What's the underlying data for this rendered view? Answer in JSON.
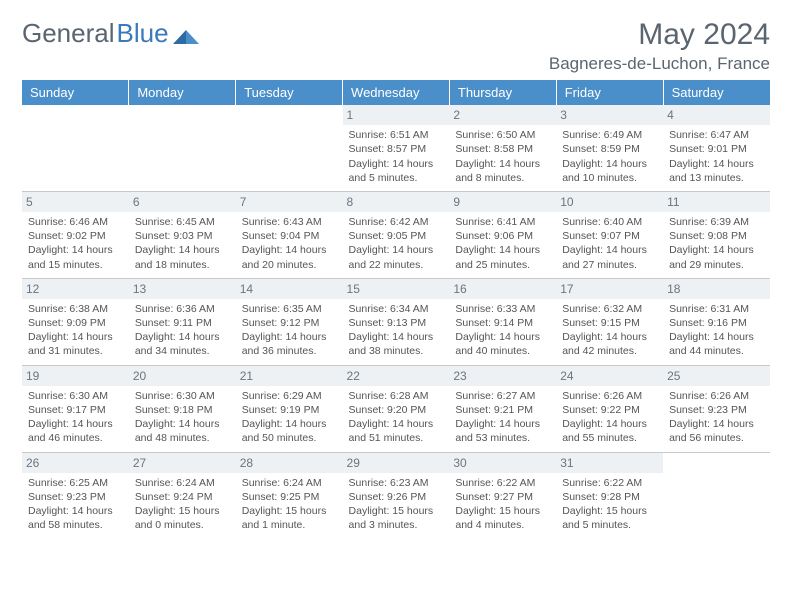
{
  "logo": {
    "text1": "General",
    "text2": "Blue"
  },
  "title": "May 2024",
  "location": "Bagneres-de-Luchon, France",
  "colors": {
    "header_bg": "#4a8fc9",
    "header_text": "#ffffff",
    "daynum_bg": "#eef1f3",
    "daynum_text": "#6a7580",
    "border": "#c8c8c8",
    "body_text": "#555555",
    "title_text": "#5a6570",
    "logo_blue": "#3a7ab8"
  },
  "day_headers": [
    "Sunday",
    "Monday",
    "Tuesday",
    "Wednesday",
    "Thursday",
    "Friday",
    "Saturday"
  ],
  "weeks": [
    [
      {
        "empty": true
      },
      {
        "empty": true
      },
      {
        "empty": true
      },
      {
        "day": "1",
        "sunrise": "Sunrise: 6:51 AM",
        "sunset": "Sunset: 8:57 PM",
        "dl1": "Daylight: 14 hours",
        "dl2": "and 5 minutes."
      },
      {
        "day": "2",
        "sunrise": "Sunrise: 6:50 AM",
        "sunset": "Sunset: 8:58 PM",
        "dl1": "Daylight: 14 hours",
        "dl2": "and 8 minutes."
      },
      {
        "day": "3",
        "sunrise": "Sunrise: 6:49 AM",
        "sunset": "Sunset: 8:59 PM",
        "dl1": "Daylight: 14 hours",
        "dl2": "and 10 minutes."
      },
      {
        "day": "4",
        "sunrise": "Sunrise: 6:47 AM",
        "sunset": "Sunset: 9:01 PM",
        "dl1": "Daylight: 14 hours",
        "dl2": "and 13 minutes."
      }
    ],
    [
      {
        "day": "5",
        "sunrise": "Sunrise: 6:46 AM",
        "sunset": "Sunset: 9:02 PM",
        "dl1": "Daylight: 14 hours",
        "dl2": "and 15 minutes."
      },
      {
        "day": "6",
        "sunrise": "Sunrise: 6:45 AM",
        "sunset": "Sunset: 9:03 PM",
        "dl1": "Daylight: 14 hours",
        "dl2": "and 18 minutes."
      },
      {
        "day": "7",
        "sunrise": "Sunrise: 6:43 AM",
        "sunset": "Sunset: 9:04 PM",
        "dl1": "Daylight: 14 hours",
        "dl2": "and 20 minutes."
      },
      {
        "day": "8",
        "sunrise": "Sunrise: 6:42 AM",
        "sunset": "Sunset: 9:05 PM",
        "dl1": "Daylight: 14 hours",
        "dl2": "and 22 minutes."
      },
      {
        "day": "9",
        "sunrise": "Sunrise: 6:41 AM",
        "sunset": "Sunset: 9:06 PM",
        "dl1": "Daylight: 14 hours",
        "dl2": "and 25 minutes."
      },
      {
        "day": "10",
        "sunrise": "Sunrise: 6:40 AM",
        "sunset": "Sunset: 9:07 PM",
        "dl1": "Daylight: 14 hours",
        "dl2": "and 27 minutes."
      },
      {
        "day": "11",
        "sunrise": "Sunrise: 6:39 AM",
        "sunset": "Sunset: 9:08 PM",
        "dl1": "Daylight: 14 hours",
        "dl2": "and 29 minutes."
      }
    ],
    [
      {
        "day": "12",
        "sunrise": "Sunrise: 6:38 AM",
        "sunset": "Sunset: 9:09 PM",
        "dl1": "Daylight: 14 hours",
        "dl2": "and 31 minutes."
      },
      {
        "day": "13",
        "sunrise": "Sunrise: 6:36 AM",
        "sunset": "Sunset: 9:11 PM",
        "dl1": "Daylight: 14 hours",
        "dl2": "and 34 minutes."
      },
      {
        "day": "14",
        "sunrise": "Sunrise: 6:35 AM",
        "sunset": "Sunset: 9:12 PM",
        "dl1": "Daylight: 14 hours",
        "dl2": "and 36 minutes."
      },
      {
        "day": "15",
        "sunrise": "Sunrise: 6:34 AM",
        "sunset": "Sunset: 9:13 PM",
        "dl1": "Daylight: 14 hours",
        "dl2": "and 38 minutes."
      },
      {
        "day": "16",
        "sunrise": "Sunrise: 6:33 AM",
        "sunset": "Sunset: 9:14 PM",
        "dl1": "Daylight: 14 hours",
        "dl2": "and 40 minutes."
      },
      {
        "day": "17",
        "sunrise": "Sunrise: 6:32 AM",
        "sunset": "Sunset: 9:15 PM",
        "dl1": "Daylight: 14 hours",
        "dl2": "and 42 minutes."
      },
      {
        "day": "18",
        "sunrise": "Sunrise: 6:31 AM",
        "sunset": "Sunset: 9:16 PM",
        "dl1": "Daylight: 14 hours",
        "dl2": "and 44 minutes."
      }
    ],
    [
      {
        "day": "19",
        "sunrise": "Sunrise: 6:30 AM",
        "sunset": "Sunset: 9:17 PM",
        "dl1": "Daylight: 14 hours",
        "dl2": "and 46 minutes."
      },
      {
        "day": "20",
        "sunrise": "Sunrise: 6:30 AM",
        "sunset": "Sunset: 9:18 PM",
        "dl1": "Daylight: 14 hours",
        "dl2": "and 48 minutes."
      },
      {
        "day": "21",
        "sunrise": "Sunrise: 6:29 AM",
        "sunset": "Sunset: 9:19 PM",
        "dl1": "Daylight: 14 hours",
        "dl2": "and 50 minutes."
      },
      {
        "day": "22",
        "sunrise": "Sunrise: 6:28 AM",
        "sunset": "Sunset: 9:20 PM",
        "dl1": "Daylight: 14 hours",
        "dl2": "and 51 minutes."
      },
      {
        "day": "23",
        "sunrise": "Sunrise: 6:27 AM",
        "sunset": "Sunset: 9:21 PM",
        "dl1": "Daylight: 14 hours",
        "dl2": "and 53 minutes."
      },
      {
        "day": "24",
        "sunrise": "Sunrise: 6:26 AM",
        "sunset": "Sunset: 9:22 PM",
        "dl1": "Daylight: 14 hours",
        "dl2": "and 55 minutes."
      },
      {
        "day": "25",
        "sunrise": "Sunrise: 6:26 AM",
        "sunset": "Sunset: 9:23 PM",
        "dl1": "Daylight: 14 hours",
        "dl2": "and 56 minutes."
      }
    ],
    [
      {
        "day": "26",
        "sunrise": "Sunrise: 6:25 AM",
        "sunset": "Sunset: 9:23 PM",
        "dl1": "Daylight: 14 hours",
        "dl2": "and 58 minutes."
      },
      {
        "day": "27",
        "sunrise": "Sunrise: 6:24 AM",
        "sunset": "Sunset: 9:24 PM",
        "dl1": "Daylight: 15 hours",
        "dl2": "and 0 minutes."
      },
      {
        "day": "28",
        "sunrise": "Sunrise: 6:24 AM",
        "sunset": "Sunset: 9:25 PM",
        "dl1": "Daylight: 15 hours",
        "dl2": "and 1 minute."
      },
      {
        "day": "29",
        "sunrise": "Sunrise: 6:23 AM",
        "sunset": "Sunset: 9:26 PM",
        "dl1": "Daylight: 15 hours",
        "dl2": "and 3 minutes."
      },
      {
        "day": "30",
        "sunrise": "Sunrise: 6:22 AM",
        "sunset": "Sunset: 9:27 PM",
        "dl1": "Daylight: 15 hours",
        "dl2": "and 4 minutes."
      },
      {
        "day": "31",
        "sunrise": "Sunrise: 6:22 AM",
        "sunset": "Sunset: 9:28 PM",
        "dl1": "Daylight: 15 hours",
        "dl2": "and 5 minutes."
      },
      {
        "empty": true
      }
    ]
  ]
}
